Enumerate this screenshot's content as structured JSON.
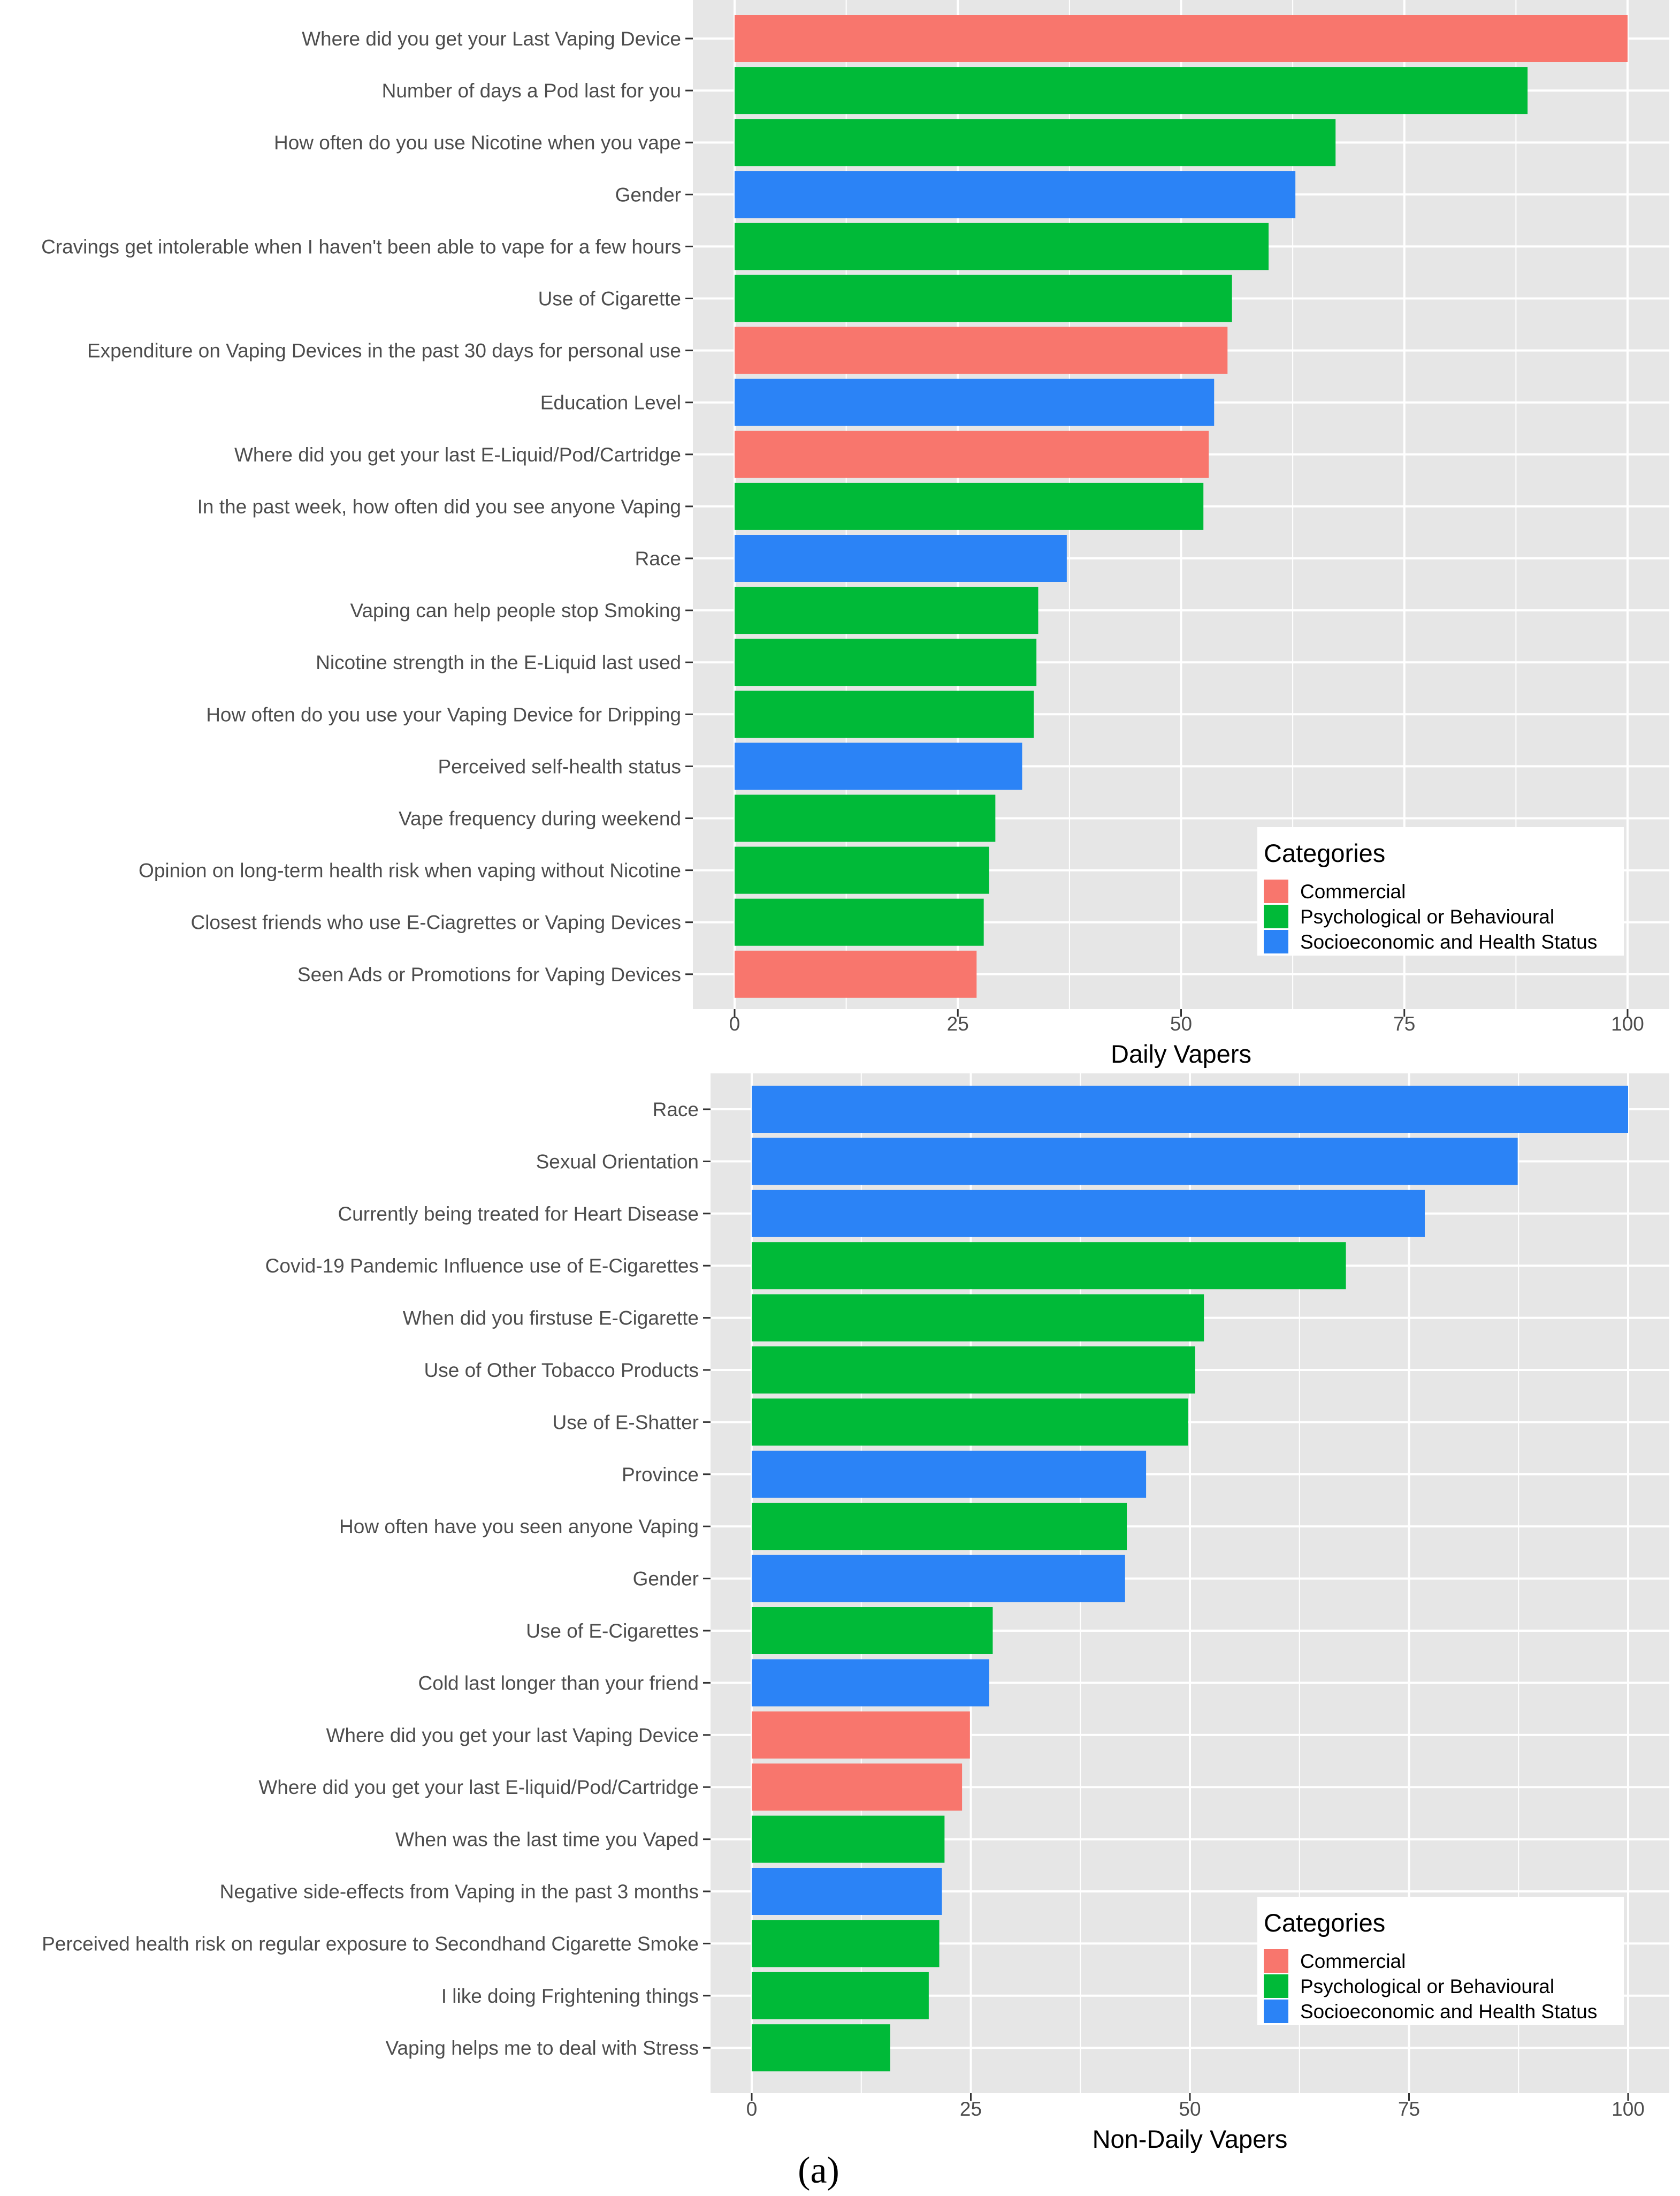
{
  "figure_label": "(a)",
  "legend": {
    "title": "Categories",
    "items": [
      {
        "key": "commercial",
        "label": "Commercial"
      },
      {
        "key": "psych",
        "label": "Psychological or Behavioural"
      },
      {
        "key": "socio",
        "label": "Socioeconomic and Health Status"
      }
    ]
  },
  "colors": {
    "commercial": "#F8766D",
    "psych": "#00BA38",
    "socio": "#2B83F6",
    "panel_bg": "#E6E6E6",
    "grid": "#FFFFFF",
    "text": "#4D4D4D"
  },
  "chart_data": [
    {
      "type": "bar",
      "orientation": "horizontal",
      "xlabel": "Daily Vapers",
      "xlim": [
        0,
        100
      ],
      "xticks": [
        0,
        25,
        50,
        75,
        100
      ],
      "legend_position": "bottom-right",
      "bars": [
        {
          "label": "Where did you get your Last Vaping Device",
          "value": 100,
          "category": "commercial"
        },
        {
          "label": "Number of days a Pod last for you",
          "value": 88.8,
          "category": "psych"
        },
        {
          "label": "How often do you use Nicotine when you vape",
          "value": 67.3,
          "category": "psych"
        },
        {
          "label": "Gender",
          "value": 62.8,
          "category": "socio"
        },
        {
          "label": "Cravings get intolerable when I haven't been able to vape for a few hours",
          "value": 59.8,
          "category": "psych"
        },
        {
          "label": "Use of Cigarette",
          "value": 55.7,
          "category": "psych"
        },
        {
          "label": "Expenditure on Vaping Devices in the past 30 days for personal use",
          "value": 55.2,
          "category": "commercial"
        },
        {
          "label": "Education Level",
          "value": 53.7,
          "category": "socio"
        },
        {
          "label": "Where did you get your last E-Liquid/Pod/Cartridge",
          "value": 53.1,
          "category": "commercial"
        },
        {
          "label": "In the past week, how often did you see anyone Vaping",
          "value": 52.5,
          "category": "psych"
        },
        {
          "label": "Race",
          "value": 37.2,
          "category": "socio"
        },
        {
          "label": "Vaping can help people stop Smoking",
          "value": 34.0,
          "category": "psych"
        },
        {
          "label": "Nicotine strength in the E-Liquid last used",
          "value": 33.8,
          "category": "psych"
        },
        {
          "label": "How often do you use your Vaping Device for Dripping",
          "value": 33.5,
          "category": "psych"
        },
        {
          "label": "Perceived self-health status",
          "value": 32.2,
          "category": "socio"
        },
        {
          "label": "Vape frequency during weekend",
          "value": 29.2,
          "category": "psych"
        },
        {
          "label": "Opinion on long-term health risk when vaping without Nicotine",
          "value": 28.5,
          "category": "psych"
        },
        {
          "label": "Closest friends who use E-Ciagrettes or Vaping Devices",
          "value": 27.9,
          "category": "psych"
        },
        {
          "label": "Seen Ads or Promotions for Vaping Devices",
          "value": 27.1,
          "category": "commercial"
        }
      ]
    },
    {
      "type": "bar",
      "orientation": "horizontal",
      "xlabel": "Non-Daily Vapers",
      "xlim": [
        0,
        100
      ],
      "xticks": [
        0,
        25,
        50,
        75,
        100
      ],
      "legend_position": "bottom-right",
      "bars": [
        {
          "label": "Race",
          "value": 100,
          "category": "socio"
        },
        {
          "label": "Sexual Orientation",
          "value": 87.4,
          "category": "socio"
        },
        {
          "label": "Currently being treated for Heart Disease",
          "value": 76.8,
          "category": "socio"
        },
        {
          "label": "Covid-19 Pandemic Influence use of E-Cigarettes",
          "value": 67.8,
          "category": "psych"
        },
        {
          "label": "When did you firstuse E-Cigarette",
          "value": 51.6,
          "category": "psych"
        },
        {
          "label": "Use of Other Tobacco Products",
          "value": 50.6,
          "category": "psych"
        },
        {
          "label": "Use of E-Shatter",
          "value": 49.8,
          "category": "psych"
        },
        {
          "label": "Province",
          "value": 45.0,
          "category": "socio"
        },
        {
          "label": "How often have you seen anyone Vaping",
          "value": 42.8,
          "category": "psych"
        },
        {
          "label": "Gender",
          "value": 42.6,
          "category": "socio"
        },
        {
          "label": "Use of E-Cigarettes",
          "value": 27.5,
          "category": "psych"
        },
        {
          "label": "Cold last longer than your friend",
          "value": 27.1,
          "category": "socio"
        },
        {
          "label": "Where did you get your last Vaping Device",
          "value": 24.9,
          "category": "commercial"
        },
        {
          "label": "Where did you get your last E-liquid/Pod/Cartridge",
          "value": 24.0,
          "category": "commercial"
        },
        {
          "label": "When was the last time you Vaped",
          "value": 22.0,
          "category": "psych"
        },
        {
          "label": "Negative side-effects from Vaping in the past 3 months",
          "value": 21.7,
          "category": "socio"
        },
        {
          "label": "Perceived health risk on regular exposure to Secondhand Cigarette Smoke",
          "value": 21.4,
          "category": "psych"
        },
        {
          "label": "I like doing Frightening things",
          "value": 20.2,
          "category": "psych"
        },
        {
          "label": "Vaping helps me to deal with Stress",
          "value": 15.8,
          "category": "psych"
        }
      ]
    }
  ]
}
